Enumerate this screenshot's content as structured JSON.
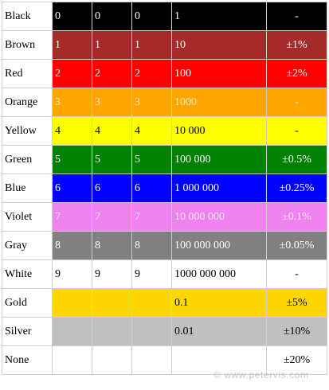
{
  "rows": [
    {
      "name": "Black",
      "d1": "0",
      "d2": "0",
      "d3": "0",
      "mult": "1",
      "tol": "-",
      "bg": "#000000",
      "fg": "#ffffff"
    },
    {
      "name": "Brown",
      "d1": "1",
      "d2": "1",
      "d3": "1",
      "mult": "10",
      "tol": "±1%",
      "bg": "#a52a2a",
      "fg": "#ffffff"
    },
    {
      "name": "Red",
      "d1": "2",
      "d2": "2",
      "d3": "2",
      "mult": "100",
      "tol": "±2%",
      "bg": "#ff0000",
      "fg": "#ffffff"
    },
    {
      "name": "Orange",
      "d1": "3",
      "d2": "3",
      "d3": "3",
      "mult": "1000",
      "tol": "-",
      "bg": "#ffa500",
      "fg": "#ffe9c2"
    },
    {
      "name": "Yellow",
      "d1": "4",
      "d2": "4",
      "d3": "4",
      "mult": "10 000",
      "tol": "-",
      "bg": "#ffff00",
      "fg": "#000000"
    },
    {
      "name": "Green",
      "d1": "5",
      "d2": "5",
      "d3": "5",
      "mult": "100 000",
      "tol": "±0.5%",
      "bg": "#008000",
      "fg": "#ffffff"
    },
    {
      "name": "Blue",
      "d1": "6",
      "d2": "6",
      "d3": "6",
      "mult": "1 000 000",
      "tol": "±0.25%",
      "bg": "#0000ff",
      "fg": "#ffffff"
    },
    {
      "name": "Violet",
      "d1": "7",
      "d2": "7",
      "d3": "7",
      "mult": "10 000 000",
      "tol": "±0.1%",
      "bg": "#ee82ee",
      "fg": "#fde7fd"
    },
    {
      "name": "Gray",
      "d1": "8",
      "d2": "8",
      "d3": "8",
      "mult": "100 000 000",
      "tol": "±0.05%",
      "bg": "#808080",
      "fg": "#ffffff"
    },
    {
      "name": "White",
      "d1": "9",
      "d2": "9",
      "d3": "9",
      "mult": "1000 000 000",
      "tol": "-",
      "bg": "#ffffff",
      "fg": "#000000"
    },
    {
      "name": "Gold",
      "d1": "",
      "d2": "",
      "d3": "",
      "mult": "0.1",
      "tol": "±5%",
      "bg": "#ffd700",
      "fg": "#000000"
    },
    {
      "name": "Silver",
      "d1": "",
      "d2": "",
      "d3": "",
      "mult": "0.01",
      "tol": "±10%",
      "bg": "#c0c0c0",
      "fg": "#000000"
    },
    {
      "name": "None",
      "d1": "",
      "d2": "",
      "d3": "",
      "mult": "",
      "tol": "±20%",
      "bg": "#ffffff",
      "fg": "#000000"
    }
  ],
  "watermark": "© www.petervis.com"
}
